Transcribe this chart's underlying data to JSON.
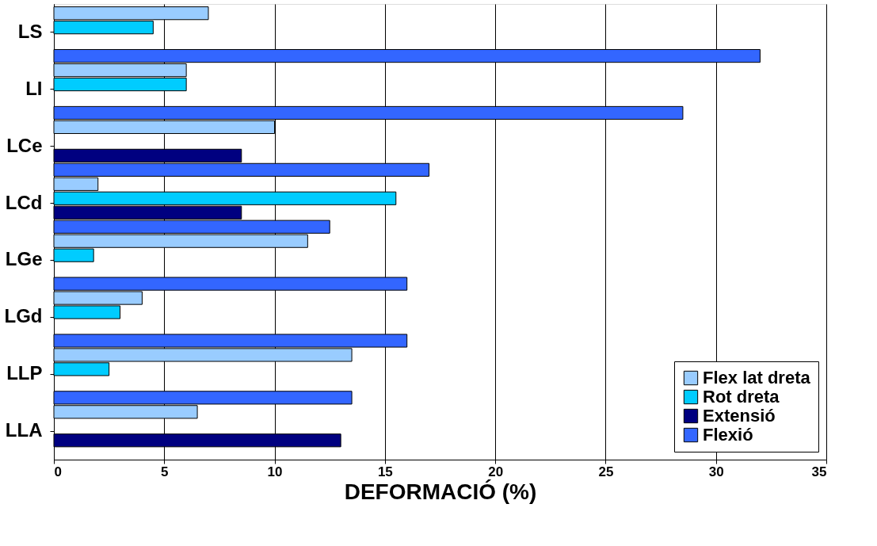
{
  "chart_data": {
    "type": "bar",
    "orientation": "horizontal",
    "xlabel": "DEFORMACIÓ (%)",
    "categories": [
      "LS",
      "LI",
      "LCe",
      "LCd",
      "LGe",
      "LGd",
      "LLP",
      "LLA"
    ],
    "series": [
      {
        "name": "Flex lat dreta",
        "color": "#99ccff",
        "values": [
          7,
          6,
          10,
          2,
          11.5,
          4,
          13.5,
          6.5
        ]
      },
      {
        "name": "Rot dreta",
        "color": "#00ccff",
        "values": [
          4.5,
          6,
          null,
          15.5,
          1.8,
          3,
          2.5,
          null
        ]
      },
      {
        "name": "Extensió",
        "color": "#000080",
        "values": [
          null,
          null,
          8.5,
          8.5,
          null,
          null,
          null,
          13
        ]
      },
      {
        "name": "Flexió",
        "color": "#3366ff",
        "values": [
          32,
          28.5,
          17,
          12.5,
          16,
          16,
          13.5,
          null
        ]
      }
    ],
    "xlim": [
      0,
      35
    ],
    "xticks": [
      0,
      5,
      10,
      15,
      20,
      25,
      30,
      35
    ],
    "grid": "x",
    "legend": "bottom right"
  }
}
